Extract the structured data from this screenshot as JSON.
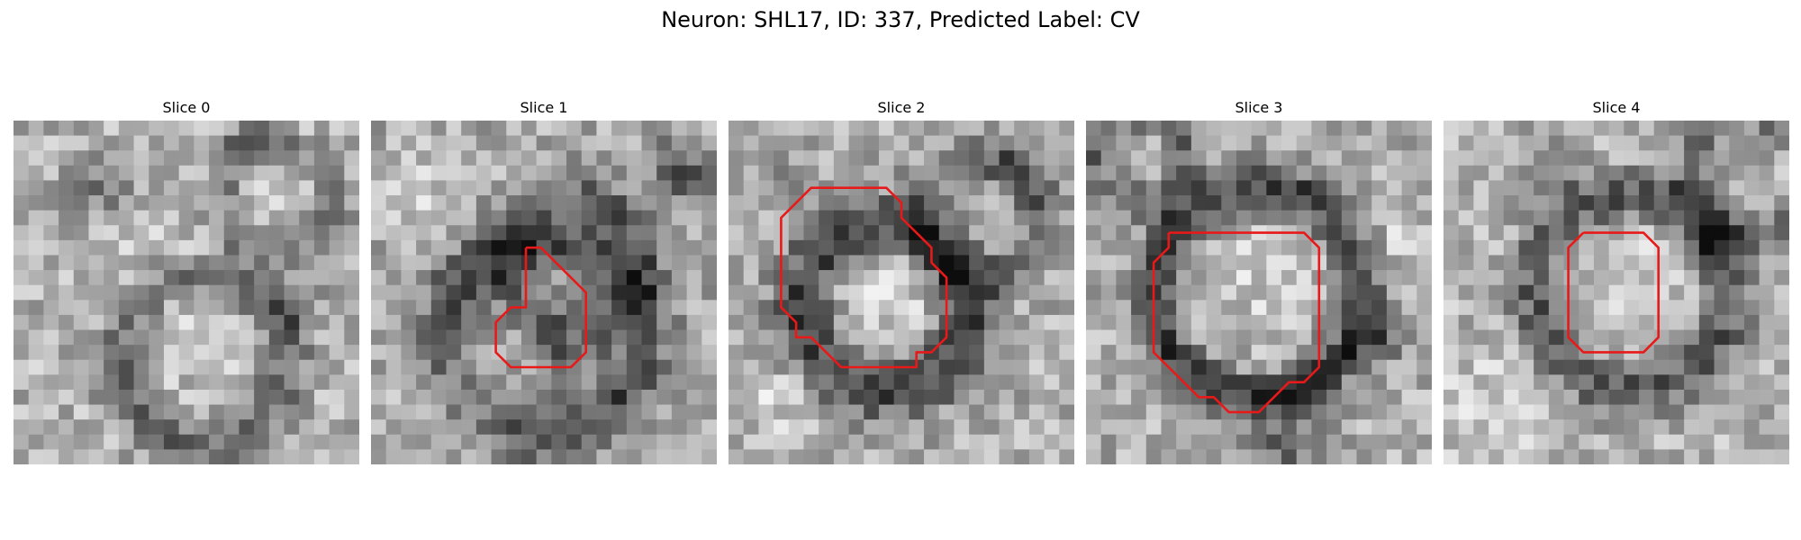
{
  "figure": {
    "title": "Neuron: SHL17, ID: 337, Predicted Label: CV"
  },
  "colors": {
    "contour": "#e81919",
    "background": "#ffffff",
    "text": "#000000"
  },
  "image": {
    "colormap": "grayscale",
    "grid_size": 23
  },
  "panels": [
    {
      "title": "Slice 0",
      "has_contour": false
    },
    {
      "title": "Slice 1",
      "has_contour": true
    },
    {
      "title": "Slice 2",
      "has_contour": true
    },
    {
      "title": "Slice 3",
      "has_contour": true
    },
    {
      "title": "Slice 4",
      "has_contour": true
    }
  ]
}
